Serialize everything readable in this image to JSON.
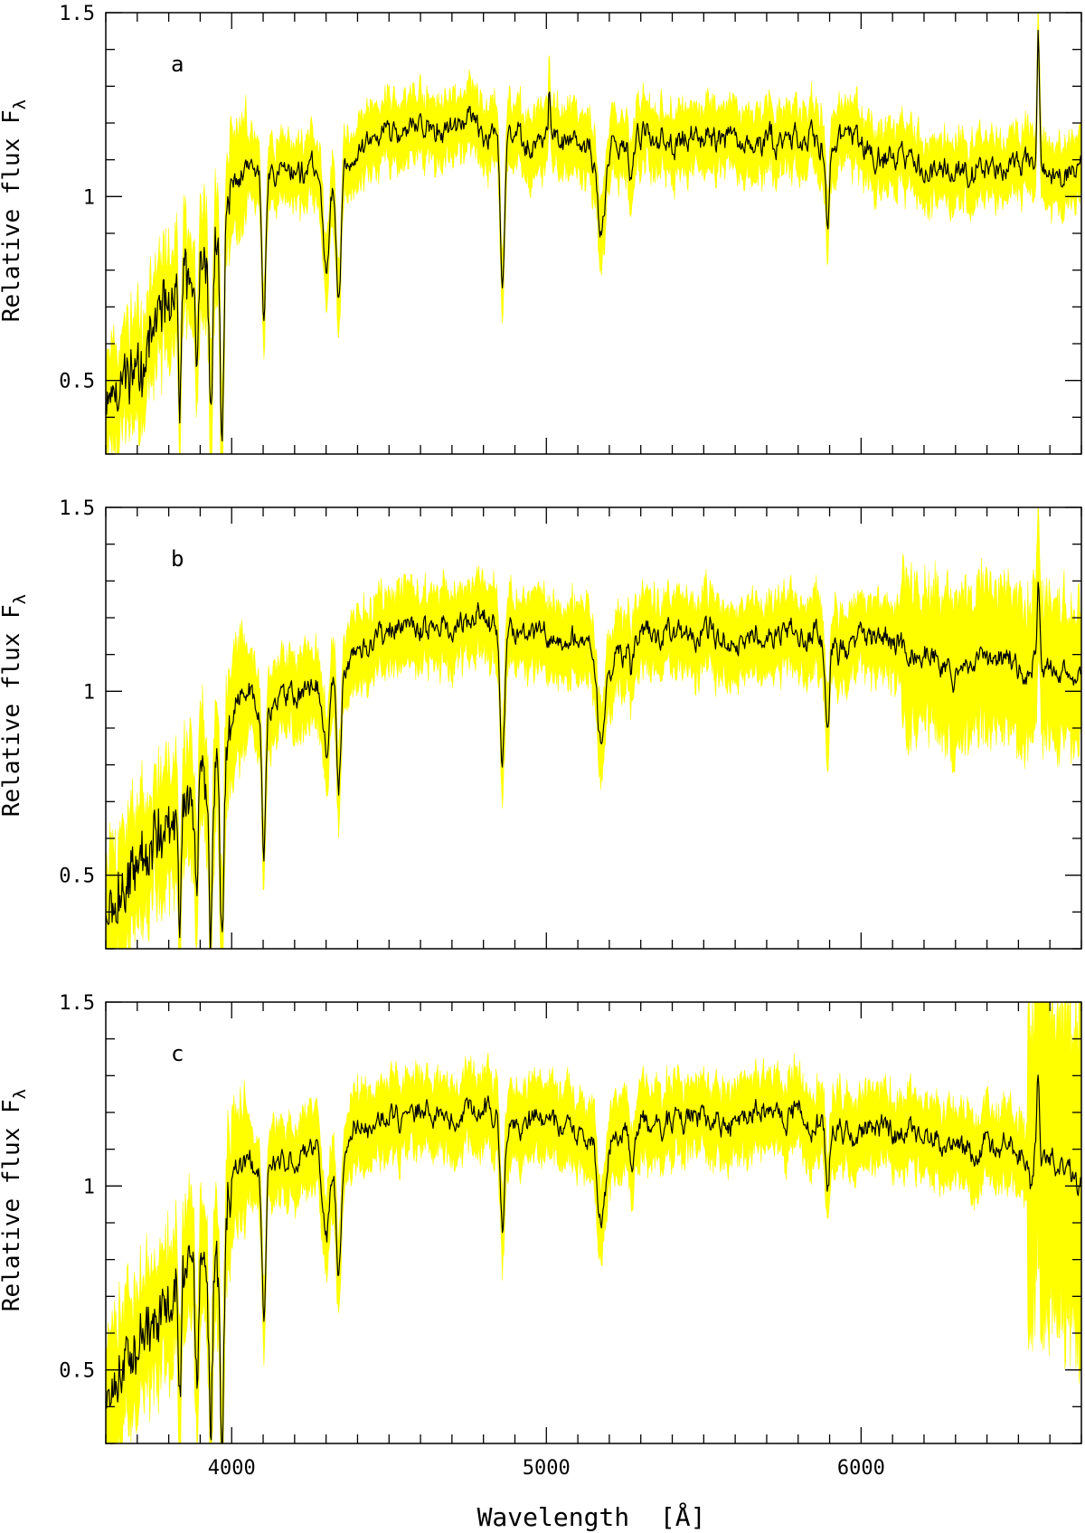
{
  "chart_data": [
    {
      "type": "line",
      "panel_label": "a",
      "ylabel": "Relative flux F",
      "ylabel_subscript": "λ",
      "xlim": [
        3600,
        6700
      ],
      "ylim": [
        0.3,
        1.5
      ],
      "yticks": [
        {
          "value": 0.5,
          "label": "0.5"
        },
        {
          "value": 1,
          "label": "1"
        },
        {
          "value": 1.5,
          "label": "1.5"
        }
      ],
      "xticks": [],
      "series_color": "#000000",
      "band_color": "#ffff00",
      "noise_seed": 11,
      "error_width": 0.085,
      "error_regions": [],
      "features": [
        {
          "x": 3835,
          "depth": 0.35,
          "width": 4
        },
        {
          "x": 3889,
          "depth": 0.3,
          "width": 5
        },
        {
          "x": 3934,
          "depth": 0.45,
          "width": 6
        },
        {
          "x": 3969,
          "depth": 0.55,
          "width": 6
        },
        {
          "x": 4102,
          "depth": 0.4,
          "width": 6
        },
        {
          "x": 4300,
          "depth": 0.25,
          "width": 10
        },
        {
          "x": 4340,
          "depth": 0.4,
          "width": 7
        },
        {
          "x": 4861,
          "depth": 0.4,
          "width": 7
        },
        {
          "x": 5010,
          "depth": -0.15,
          "width": 3
        },
        {
          "x": 5175,
          "depth": 0.22,
          "width": 12
        },
        {
          "x": 5270,
          "depth": 0.12,
          "width": 6
        },
        {
          "x": 5893,
          "depth": 0.22,
          "width": 6
        },
        {
          "x": 6563,
          "depth": -0.38,
          "width": 4
        }
      ],
      "continuum": [
        [
          3600,
          0.45
        ],
        [
          3700,
          0.55
        ],
        [
          3800,
          0.7
        ],
        [
          3900,
          0.82
        ],
        [
          3980,
          0.92
        ],
        [
          4000,
          1.02
        ],
        [
          4050,
          1.07
        ],
        [
          4200,
          1.06
        ],
        [
          4300,
          1.08
        ],
        [
          4400,
          1.13
        ],
        [
          4500,
          1.19
        ],
        [
          4600,
          1.19
        ],
        [
          4700,
          1.18
        ],
        [
          4800,
          1.18
        ],
        [
          4900,
          1.16
        ],
        [
          5000,
          1.17
        ],
        [
          5100,
          1.13
        ],
        [
          5200,
          1.13
        ],
        [
          5300,
          1.15
        ],
        [
          5500,
          1.15
        ],
        [
          5700,
          1.16
        ],
        [
          5800,
          1.17
        ],
        [
          5850,
          1.16
        ],
        [
          5950,
          1.14
        ],
        [
          6100,
          1.12
        ],
        [
          6200,
          1.08
        ],
        [
          6300,
          1.06
        ],
        [
          6400,
          1.08
        ],
        [
          6500,
          1.08
        ],
        [
          6600,
          1.07
        ],
        [
          6700,
          1.06
        ]
      ]
    },
    {
      "type": "line",
      "panel_label": "b",
      "ylabel": "Relative flux F",
      "ylabel_subscript": "λ",
      "xlim": [
        3600,
        6700
      ],
      "ylim": [
        0.3,
        1.5
      ],
      "yticks": [
        {
          "value": 0.5,
          "label": "0.5"
        },
        {
          "value": 1,
          "label": "1"
        },
        {
          "value": 1.5,
          "label": "1.5"
        }
      ],
      "xticks": [],
      "series_color": "#000000",
      "band_color": "#ffff00",
      "noise_seed": 23,
      "error_width": 0.1,
      "error_regions": [
        {
          "from": 6130,
          "to": 6700,
          "width": 0.19
        }
      ],
      "features": [
        {
          "x": 3835,
          "depth": 0.35,
          "width": 4
        },
        {
          "x": 3889,
          "depth": 0.3,
          "width": 5
        },
        {
          "x": 3934,
          "depth": 0.45,
          "width": 6
        },
        {
          "x": 3969,
          "depth": 0.55,
          "width": 6
        },
        {
          "x": 4102,
          "depth": 0.38,
          "width": 6
        },
        {
          "x": 4300,
          "depth": 0.2,
          "width": 10
        },
        {
          "x": 4340,
          "depth": 0.33,
          "width": 7
        },
        {
          "x": 4861,
          "depth": 0.35,
          "width": 7
        },
        {
          "x": 5175,
          "depth": 0.25,
          "width": 12
        },
        {
          "x": 5270,
          "depth": 0.1,
          "width": 6
        },
        {
          "x": 5893,
          "depth": 0.22,
          "width": 6
        },
        {
          "x": 6563,
          "depth": -0.2,
          "width": 4
        }
      ],
      "continuum": [
        [
          3600,
          0.4
        ],
        [
          3700,
          0.52
        ],
        [
          3800,
          0.65
        ],
        [
          3900,
          0.76
        ],
        [
          3980,
          0.85
        ],
        [
          4020,
          0.98
        ],
        [
          4100,
          0.97
        ],
        [
          4200,
          0.98
        ],
        [
          4300,
          1.03
        ],
        [
          4400,
          1.1
        ],
        [
          4500,
          1.17
        ],
        [
          4600,
          1.19
        ],
        [
          4700,
          1.18
        ],
        [
          4800,
          1.18
        ],
        [
          4900,
          1.14
        ],
        [
          5000,
          1.16
        ],
        [
          5100,
          1.12
        ],
        [
          5200,
          1.11
        ],
        [
          5300,
          1.16
        ],
        [
          5500,
          1.15
        ],
        [
          5700,
          1.15
        ],
        [
          5800,
          1.16
        ],
        [
          5900,
          1.13
        ],
        [
          6000,
          1.14
        ],
        [
          6100,
          1.14
        ],
        [
          6200,
          1.09
        ],
        [
          6300,
          1.05
        ],
        [
          6400,
          1.08
        ],
        [
          6500,
          1.08
        ],
        [
          6600,
          1.07
        ],
        [
          6700,
          1.05
        ]
      ]
    },
    {
      "type": "line",
      "panel_label": "c",
      "ylabel": "Relative flux F",
      "ylabel_subscript": "λ",
      "xlabel": "Wavelength  [Å]",
      "xlim": [
        3600,
        6700
      ],
      "ylim": [
        0.3,
        1.5
      ],
      "yticks": [
        {
          "value": 0.5,
          "label": "0.5"
        },
        {
          "value": 1,
          "label": "1"
        },
        {
          "value": 1.5,
          "label": "1.5"
        }
      ],
      "xticks": [
        {
          "value": 4000,
          "label": "4000"
        },
        {
          "value": 5000,
          "label": "5000"
        },
        {
          "value": 6000,
          "label": "6000"
        }
      ],
      "series_color": "#000000",
      "band_color": "#ffff00",
      "noise_seed": 37,
      "error_width": 0.1,
      "error_regions": [
        {
          "from": 6530,
          "to": 6700,
          "width": 0.42
        }
      ],
      "features": [
        {
          "x": 3835,
          "depth": 0.35,
          "width": 4
        },
        {
          "x": 3889,
          "depth": 0.3,
          "width": 5
        },
        {
          "x": 3934,
          "depth": 0.45,
          "width": 6
        },
        {
          "x": 3969,
          "depth": 0.55,
          "width": 6
        },
        {
          "x": 4102,
          "depth": 0.38,
          "width": 6
        },
        {
          "x": 4300,
          "depth": 0.22,
          "width": 10
        },
        {
          "x": 4340,
          "depth": 0.33,
          "width": 7
        },
        {
          "x": 4861,
          "depth": 0.32,
          "width": 7
        },
        {
          "x": 5175,
          "depth": 0.22,
          "width": 12
        },
        {
          "x": 5270,
          "depth": 0.12,
          "width": 6
        },
        {
          "x": 5893,
          "depth": 0.22,
          "width": 6
        },
        {
          "x": 6540,
          "depth": 0.12,
          "width": 6
        },
        {
          "x": 6563,
          "depth": -0.22,
          "width": 4
        }
      ],
      "continuum": [
        [
          3600,
          0.45
        ],
        [
          3700,
          0.56
        ],
        [
          3800,
          0.68
        ],
        [
          3900,
          0.8
        ],
        [
          3980,
          0.9
        ],
        [
          4020,
          1.04
        ],
        [
          4100,
          1.03
        ],
        [
          4200,
          1.06
        ],
        [
          4300,
          1.08
        ],
        [
          4400,
          1.15
        ],
        [
          4500,
          1.2
        ],
        [
          4600,
          1.22
        ],
        [
          4700,
          1.22
        ],
        [
          4800,
          1.21
        ],
        [
          4900,
          1.17
        ],
        [
          5000,
          1.18
        ],
        [
          5100,
          1.16
        ],
        [
          5200,
          1.14
        ],
        [
          5300,
          1.18
        ],
        [
          5500,
          1.18
        ],
        [
          5700,
          1.19
        ],
        [
          5800,
          1.2
        ],
        [
          5900,
          1.16
        ],
        [
          6000,
          1.16
        ],
        [
          6100,
          1.15
        ],
        [
          6200,
          1.13
        ],
        [
          6300,
          1.1
        ],
        [
          6400,
          1.1
        ],
        [
          6500,
          1.1
        ],
        [
          6600,
          1.06
        ],
        [
          6700,
          1.03
        ]
      ]
    }
  ]
}
